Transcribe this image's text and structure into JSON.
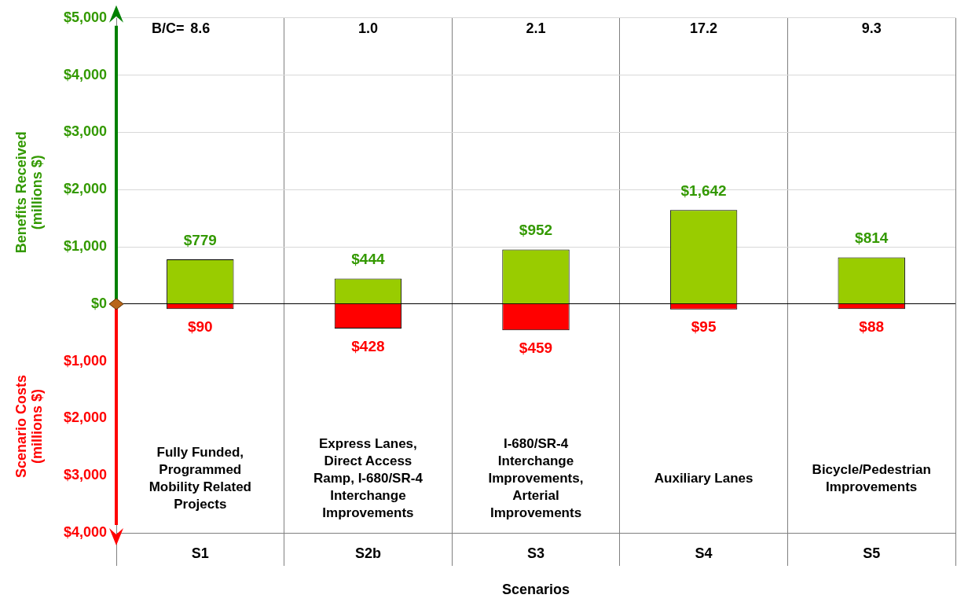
{
  "chart_data": {
    "type": "bar",
    "stacked": true,
    "xlabel": "Scenarios",
    "ylabel": "Benefits Received\n(millions $)",
    "categories": [
      "S1",
      "S2b",
      "S3",
      "S4",
      "S5"
    ],
    "series": [
      {
        "color": "#99cc00",
        "values": [
          779,
          444,
          952,
          1642,
          814
        ],
        "value_labels": [
          "$779",
          "$444",
          "$952",
          "$1,642",
          "$814"
        ]
      },
      {
        "color": "#ff0000",
        "axis": "y2",
        "values": [
          90,
          428,
          459,
          95,
          88
        ],
        "value_labels": [
          "$90",
          "$428",
          "$459",
          "$95",
          "$88"
        ]
      }
    ],
    "y2lim": [
      4000,
      -5000
    ],
    "y2ticks": [
      {
        "value": 1000,
        "label": "$1,000"
      },
      {
        "value": 2000,
        "label": "$2,000"
      },
      {
        "value": 3000,
        "label": "$3,000"
      },
      {
        "value": 4000,
        "label": "$4,000"
      }
    ],
    "ylim": [
      -4000,
      5000
    ],
    "yticks": [
      {
        "value": 5000,
        "label": "$5,000"
      },
      {
        "value": 4000,
        "label": "$4,000"
      },
      {
        "value": 3000,
        "label": "$3,000"
      },
      {
        "value": 2000,
        "label": "$2,000"
      },
      {
        "value": 1000,
        "label": "$1,000"
      },
      {
        "value": 0,
        "label": "$0"
      }
    ],
    "grid": true,
    "legend": false,
    "annotations": [
      "B/C=",
      "8.6",
      "1.0",
      "2.1",
      "17.2",
      "9.3",
      "Fully Funded,\nProgrammed\nMobility Related\nProjects",
      "Express Lanes,\nDirect Access\nRamp, I-680/SR-4\nInterchange\nImprovements",
      "I-680/SR-4\nInterchange\nImprovements,\nArterial\nImprovements",
      "Auxiliary Lanes",
      "Bicycle/Pedestrian\nImprovements",
      "Scenario Costs\n(millions $)"
    ]
  }
}
